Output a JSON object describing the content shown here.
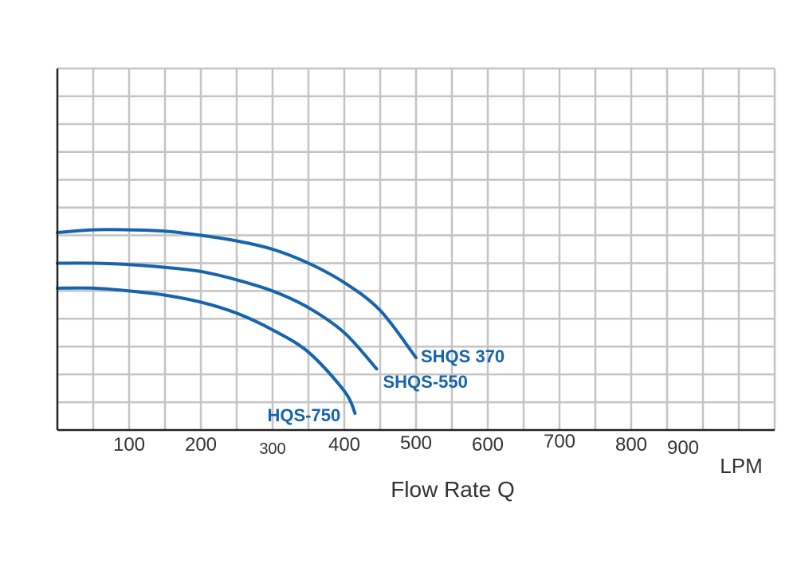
{
  "chart_data": {
    "type": "line",
    "xlabel": "Flow Rate Q",
    "x_unit": "LPM",
    "ylabel": "",
    "xlim": [
      0,
      1000
    ],
    "x_ticks": [
      {
        "label": "100",
        "value": 100
      },
      {
        "label": "200",
        "value": 200
      },
      {
        "label": "300",
        "value": 300
      },
      {
        "label": "400",
        "value": 400
      },
      {
        "label": "500",
        "value": 500
      },
      {
        "label": "600",
        "value": 600
      },
      {
        "label": "700",
        "value": 700
      },
      {
        "label": "800",
        "value": 800
      },
      {
        "label": "900",
        "value": 900
      }
    ],
    "grid": true,
    "y_grid_lines": 13,
    "color": "#1564ad",
    "series": [
      {
        "name": "SHQS 370",
        "points": [
          [
            0,
            7.1
          ],
          [
            50,
            7.2
          ],
          [
            100,
            7.2
          ],
          [
            150,
            7.15
          ],
          [
            200,
            7.0
          ],
          [
            250,
            6.8
          ],
          [
            300,
            6.5
          ],
          [
            350,
            6.0
          ],
          [
            400,
            5.3
          ],
          [
            450,
            4.3
          ],
          [
            500,
            2.6
          ]
        ]
      },
      {
        "name": "SHQS-550",
        "points": [
          [
            0,
            6.0
          ],
          [
            50,
            6.0
          ],
          [
            100,
            5.95
          ],
          [
            150,
            5.85
          ],
          [
            200,
            5.7
          ],
          [
            250,
            5.4
          ],
          [
            300,
            5.0
          ],
          [
            350,
            4.4
          ],
          [
            400,
            3.5
          ],
          [
            445,
            2.2
          ]
        ]
      },
      {
        "name": "HQS-750",
        "points": [
          [
            0,
            5.1
          ],
          [
            50,
            5.1
          ],
          [
            100,
            5.0
          ],
          [
            150,
            4.85
          ],
          [
            200,
            4.6
          ],
          [
            250,
            4.2
          ],
          [
            300,
            3.6
          ],
          [
            350,
            2.8
          ],
          [
            400,
            1.4
          ],
          [
            415,
            0.6
          ]
        ]
      }
    ]
  }
}
